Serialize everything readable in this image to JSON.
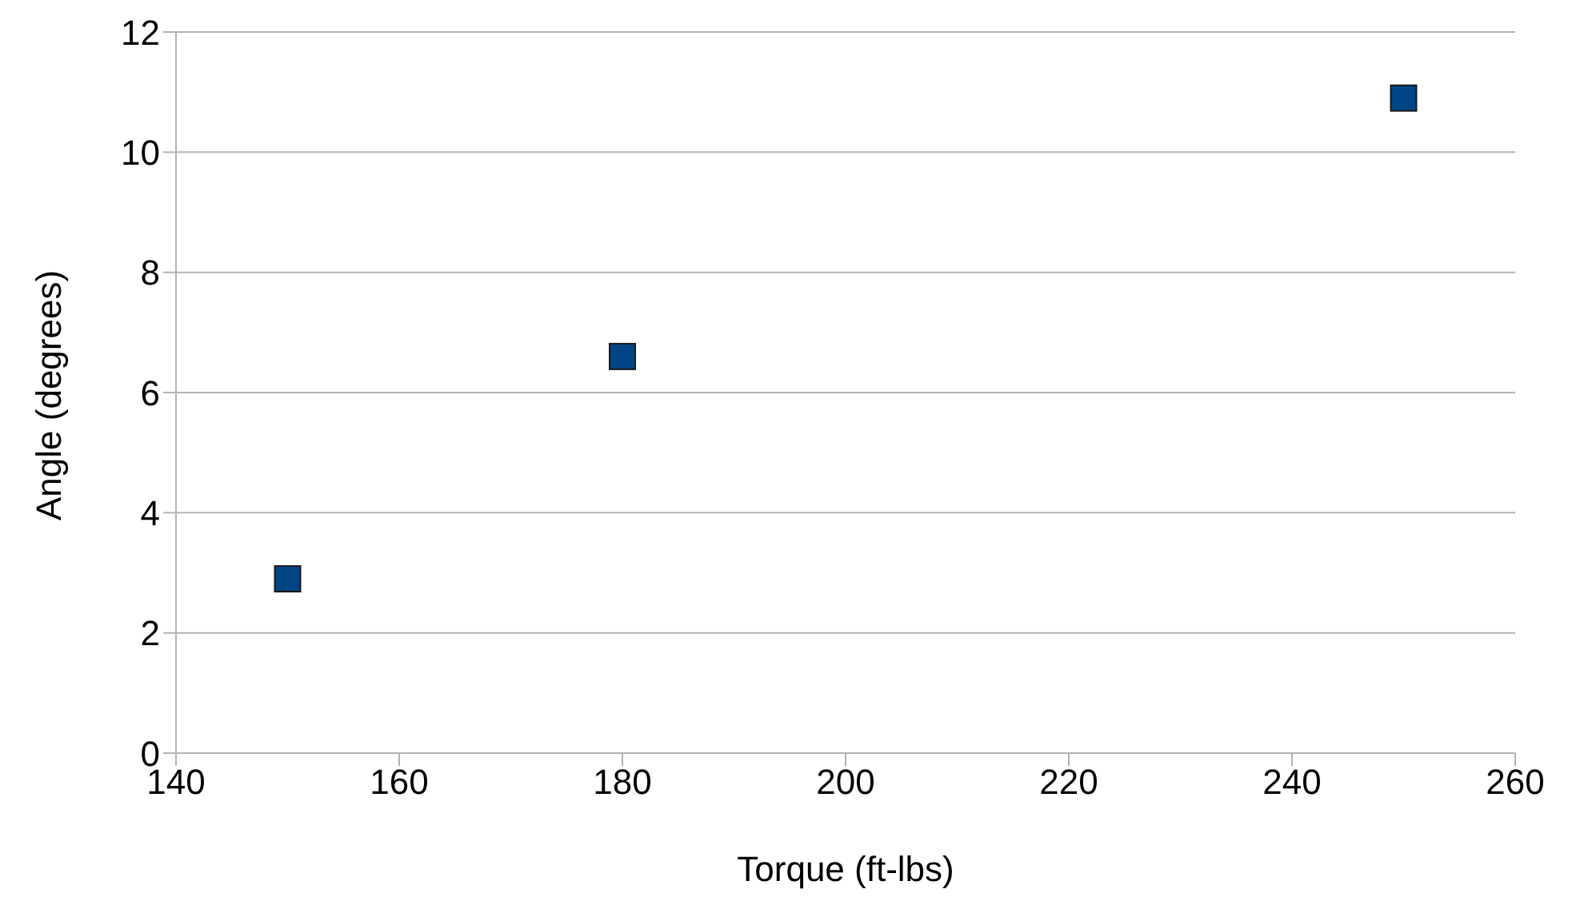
{
  "chart_data": {
    "type": "scatter",
    "xlabel": "Torque (ft-lbs)",
    "ylabel": "Angle (degrees)",
    "x": [
      150,
      180,
      250
    ],
    "series": [
      {
        "color": "#004586",
        "values": [
          2.9,
          6.6,
          10.9
        ]
      }
    ],
    "xlim": [
      140,
      260
    ],
    "xticks": [
      140,
      160,
      180,
      200,
      220,
      240,
      260
    ],
    "ylim": [
      0,
      12
    ],
    "yticks": [
      0,
      2,
      4,
      6,
      8,
      10,
      12
    ],
    "grid": "y",
    "legend": false,
    "marker": "square"
  }
}
